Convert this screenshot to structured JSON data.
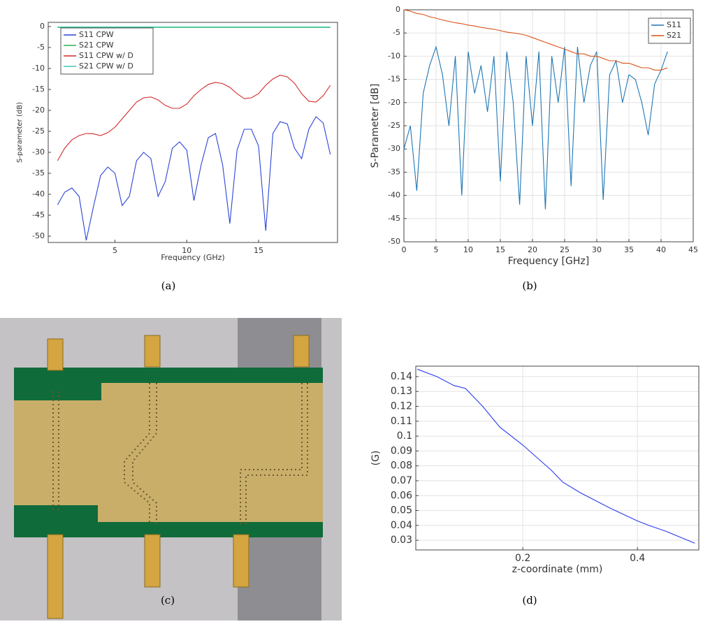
{
  "chart_data": [
    {
      "type": "line",
      "ylabel": "S-parameter (dB)",
      "xlabel": "Frequency (GHz)",
      "x": [
        1,
        1.5,
        2,
        2.5,
        3,
        3.5,
        4,
        4.5,
        5,
        5.5,
        6,
        6.5,
        7,
        7.5,
        8,
        8.5,
        9,
        9.5,
        10,
        10.5,
        11,
        11.5,
        12,
        12.5,
        13,
        13.5,
        14,
        14.5,
        15,
        15.5,
        16,
        16.5,
        17,
        17.5,
        18,
        18.5,
        19,
        19.5,
        20
      ],
      "xlim": [
        0.35,
        20.5
      ],
      "xticks": [
        5,
        10,
        15
      ],
      "ylim": [
        -51.5,
        1
      ],
      "yticks": [
        0,
        -5,
        -10,
        -15,
        -20,
        -25,
        -30,
        -35,
        -40,
        -45,
        -50
      ],
      "grid": false,
      "legend": "upper left",
      "caption": "(a)",
      "series": [
        {
          "name": "S11 CPW",
          "color": "#2b45d6",
          "values": [
            -42.5,
            -39.5,
            -38.5,
            -40.5,
            -51,
            -43,
            -35.5,
            -33.5,
            -35,
            -42.7,
            -40.5,
            -32,
            -30,
            -31.5,
            -40.5,
            -37,
            -29,
            -27.5,
            -29.5,
            -41.5,
            -33,
            -26.5,
            -25.5,
            -33,
            -47,
            -29.5,
            -24.5,
            -24.5,
            -28.5,
            -48.7,
            -25.5,
            -22.7,
            -23.2,
            -29,
            -31.5,
            -24.5,
            -21.5,
            -23,
            -30.5
          ]
        },
        {
          "name": "S21 CPW",
          "color": "#2bb24c",
          "values": [
            -0.2,
            -0.2,
            -0.2,
            -0.2,
            -0.2,
            -0.2,
            -0.2,
            -0.2,
            -0.2,
            -0.2,
            -0.2,
            -0.2,
            -0.2,
            -0.2,
            -0.2,
            -0.2,
            -0.2,
            -0.2,
            -0.2,
            -0.2,
            -0.2,
            -0.2,
            -0.2,
            -0.2,
            -0.2,
            -0.2,
            -0.2,
            -0.2,
            -0.2,
            -0.2,
            -0.2,
            -0.2,
            -0.2,
            -0.2,
            -0.2,
            -0.2,
            -0.2,
            -0.2,
            -0.2
          ]
        },
        {
          "name": "S11 CPW w/ D",
          "color": "#d42a2a",
          "values": [
            -32,
            -29,
            -27,
            -26,
            -25.5,
            -25.6,
            -26,
            -25.3,
            -24,
            -22,
            -20,
            -18,
            -17,
            -16.8,
            -17.5,
            -18.8,
            -19.5,
            -19.5,
            -18.5,
            -16.5,
            -15,
            -13.8,
            -13.3,
            -13.6,
            -14.5,
            -16,
            -17.2,
            -17,
            -16,
            -14,
            -12.5,
            -11.6,
            -12,
            -13.5,
            -16,
            -17.8,
            -18,
            -16.5,
            -14
          ]
        },
        {
          "name": "S21 CPW w/ D",
          "color": "#3cc8b4",
          "values": [
            -0.1,
            -0.1,
            -0.1,
            -0.1,
            -0.1,
            -0.1,
            -0.1,
            -0.1,
            -0.1,
            -0.1,
            -0.1,
            -0.1,
            -0.1,
            -0.1,
            -0.1,
            -0.1,
            -0.1,
            -0.1,
            -0.1,
            -0.1,
            -0.1,
            -0.1,
            -0.1,
            -0.1,
            -0.1,
            -0.1,
            -0.1,
            -0.1,
            -0.1,
            -0.1,
            -0.1,
            -0.1,
            -0.1,
            -0.1,
            -0.1,
            -0.1,
            -0.1,
            -0.1,
            -0.1
          ]
        }
      ]
    },
    {
      "type": "line",
      "ylabel": "S-Parameter [dB]",
      "xlabel": "Frequency [GHz]",
      "x": [
        0,
        1,
        2,
        3,
        4,
        5,
        6,
        7,
        8,
        9,
        10,
        11,
        12,
        13,
        14,
        15,
        16,
        17,
        18,
        19,
        20,
        21,
        22,
        23,
        24,
        25,
        26,
        27,
        28,
        29,
        30,
        31,
        32,
        33,
        34,
        35,
        36,
        37,
        38,
        39,
        40,
        41
      ],
      "xlim": [
        0,
        45
      ],
      "xticks": [
        0,
        5,
        10,
        15,
        20,
        25,
        30,
        35,
        40,
        45
      ],
      "ylim": [
        -50,
        0
      ],
      "yticks": [
        0,
        -5,
        -10,
        -15,
        -20,
        -25,
        -30,
        -35,
        -40,
        -45,
        -50
      ],
      "grid": true,
      "legend": "upper right",
      "caption": "(b)",
      "series": [
        {
          "name": "S11",
          "color": "#1f77b4",
          "values": [
            -30,
            -25,
            -39,
            -18,
            -12,
            -8,
            -14,
            -25,
            -10,
            -40,
            -9,
            -18,
            -12,
            -22,
            -10,
            -37,
            -9,
            -20,
            -42,
            -10,
            -25,
            -9,
            -43,
            -10,
            -20,
            -8,
            -38,
            -8,
            -20,
            -12,
            -9,
            -41,
            -14,
            -11,
            -20,
            -14,
            -15,
            -20,
            -27,
            -16,
            -13,
            -9
          ]
        },
        {
          "name": "S21",
          "color": "#d95319",
          "values": [
            0,
            -0.3,
            -0.8,
            -1,
            -1.5,
            -1.8,
            -2.2,
            -2.5,
            -2.8,
            -3,
            -3.3,
            -3.5,
            -3.8,
            -4,
            -4.2,
            -4.5,
            -4.8,
            -5,
            -5.2,
            -5.5,
            -6,
            -6.5,
            -7,
            -7.5,
            -8,
            -8.5,
            -9,
            -9.5,
            -9.5,
            -10,
            -10,
            -10.5,
            -11,
            -11,
            -11.5,
            -11.5,
            -12,
            -12.5,
            -12.5,
            -13,
            -13,
            -12.5
          ]
        }
      ]
    },
    {
      "type": "line",
      "ylabel": "(G)",
      "xlabel": "z-coordinate (mm)",
      "x": [
        0.016,
        0.05,
        0.08,
        0.1,
        0.13,
        0.16,
        0.2,
        0.25,
        0.27,
        0.3,
        0.35,
        0.4,
        0.42,
        0.45,
        0.5
      ],
      "xlim": [
        0.0134,
        0.507
      ],
      "xticks": [
        0.2,
        0.4
      ],
      "ylim": [
        0.0235,
        0.147
      ],
      "yticks": [
        0.03,
        0.04,
        0.05,
        0.06,
        0.07,
        0.08,
        0.09,
        0.1,
        0.11,
        0.12,
        0.13,
        0.14
      ],
      "grid": true,
      "caption": "(d)",
      "series": [
        {
          "color": "#2a3bf0",
          "values": [
            0.145,
            0.14,
            0.134,
            0.132,
            0.12,
            0.106,
            0.094,
            0.077,
            0.069,
            0.062,
            0.052,
            0.043,
            0.04,
            0.036,
            0.028
          ]
        }
      ]
    }
  ],
  "photo_caption": "(c)"
}
